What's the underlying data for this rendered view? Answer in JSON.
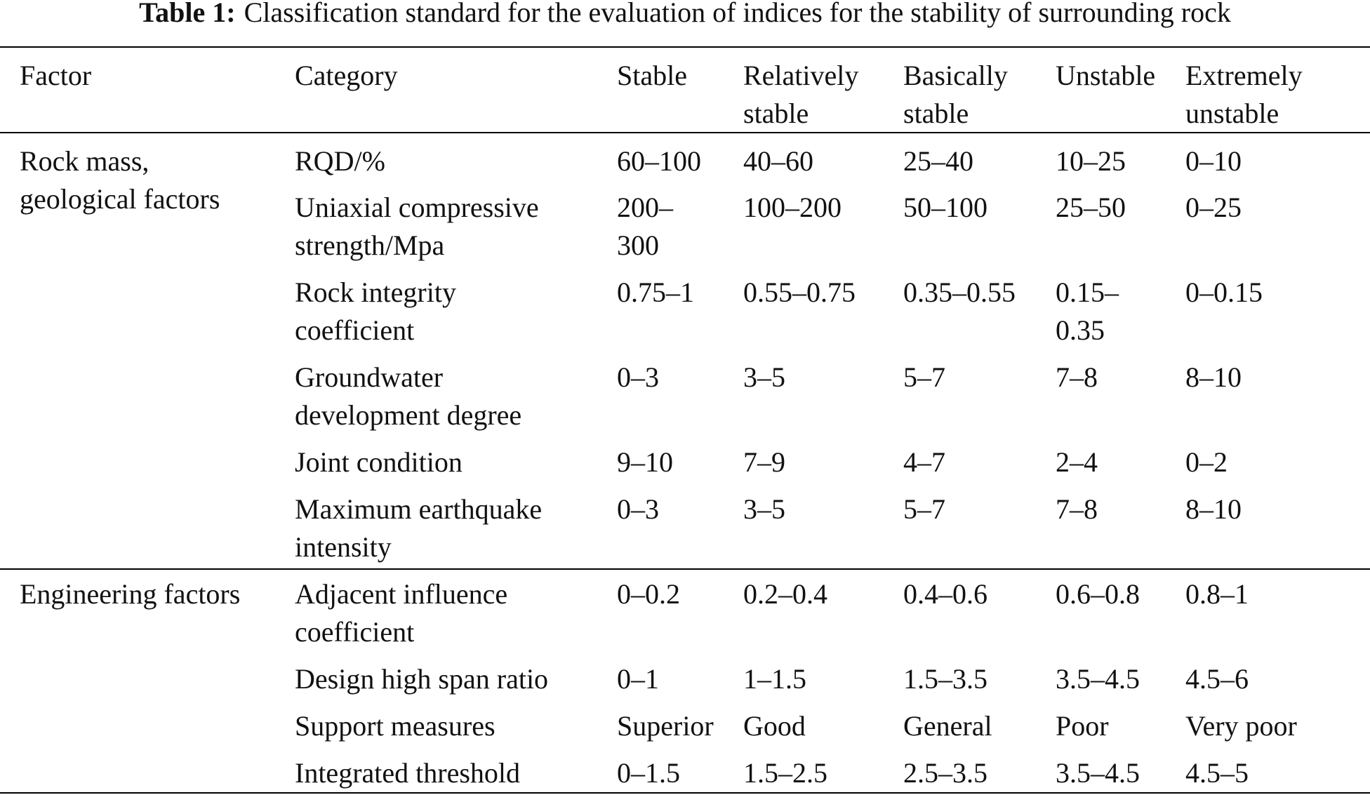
{
  "caption": {
    "label": "Table 1:",
    "text": "Classification standard for the evaluation of indices for the stability of surrounding rock"
  },
  "header": {
    "factor": "Factor",
    "category": "Category",
    "stable": "Stable",
    "relatively_stable": [
      "Relatively",
      "stable"
    ],
    "basically_stable": [
      "Basically",
      "stable"
    ],
    "unstable": "Unstable",
    "extremely_unstable": [
      "Extremely",
      "unstable"
    ]
  },
  "groups": [
    {
      "factor": [
        "Rock mass,",
        "geological factors"
      ],
      "rows": [
        {
          "category": [
            "RQD/%"
          ],
          "stable": [
            "60–100"
          ],
          "relatively_stable": [
            "40–60"
          ],
          "basically_stable": [
            "25–40"
          ],
          "unstable": [
            "10–25"
          ],
          "extremely_unstable": [
            "0–10"
          ]
        },
        {
          "category": [
            "Uniaxial compressive",
            "strength/Mpa"
          ],
          "stable": [
            "200–",
            "300"
          ],
          "relatively_stable": [
            "100–200"
          ],
          "basically_stable": [
            "50–100"
          ],
          "unstable": [
            "25–50"
          ],
          "extremely_unstable": [
            "0–25"
          ]
        },
        {
          "category": [
            "Rock integrity",
            "coefficient"
          ],
          "stable": [
            "0.75–1"
          ],
          "relatively_stable": [
            "0.55–0.75"
          ],
          "basically_stable": [
            "0.35–0.55"
          ],
          "unstable": [
            "0.15–",
            "0.35"
          ],
          "extremely_unstable": [
            "0–0.15"
          ]
        },
        {
          "category": [
            "Groundwater",
            "development degree"
          ],
          "stable": [
            "0–3"
          ],
          "relatively_stable": [
            "3–5"
          ],
          "basically_stable": [
            "5–7"
          ],
          "unstable": [
            "7–8"
          ],
          "extremely_unstable": [
            "8–10"
          ]
        },
        {
          "category": [
            "Joint condition"
          ],
          "stable": [
            "9–10"
          ],
          "relatively_stable": [
            "7–9"
          ],
          "basically_stable": [
            "4–7"
          ],
          "unstable": [
            "2–4"
          ],
          "extremely_unstable": [
            "0–2"
          ]
        },
        {
          "category": [
            "Maximum earthquake",
            "intensity"
          ],
          "stable": [
            "0–3"
          ],
          "relatively_stable": [
            "3–5"
          ],
          "basically_stable": [
            "5–7"
          ],
          "unstable": [
            "7–8"
          ],
          "extremely_unstable": [
            "8–10"
          ]
        }
      ]
    },
    {
      "factor": [
        "Engineering factors"
      ],
      "rows": [
        {
          "category": [
            "Adjacent influence",
            "coefficient"
          ],
          "stable": [
            "0–0.2"
          ],
          "relatively_stable": [
            "0.2–0.4"
          ],
          "basically_stable": [
            "0.4–0.6"
          ],
          "unstable": [
            "0.6–0.8"
          ],
          "extremely_unstable": [
            "0.8–1"
          ]
        },
        {
          "category": [
            "Design high span ratio"
          ],
          "stable": [
            "0–1"
          ],
          "relatively_stable": [
            "1–1.5"
          ],
          "basically_stable": [
            "1.5–3.5"
          ],
          "unstable": [
            "3.5–4.5"
          ],
          "extremely_unstable": [
            "4.5–6"
          ]
        },
        {
          "category": [
            "Support measures"
          ],
          "stable": [
            "Superior"
          ],
          "relatively_stable": [
            "Good"
          ],
          "basically_stable": [
            "General"
          ],
          "unstable": [
            "Poor"
          ],
          "extremely_unstable": [
            "Very poor"
          ]
        },
        {
          "category": [
            "Integrated threshold"
          ],
          "stable": [
            "0–1.5"
          ],
          "relatively_stable": [
            "1.5–2.5"
          ],
          "basically_stable": [
            "2.5–3.5"
          ],
          "unstable": [
            "3.5–4.5"
          ],
          "extremely_unstable": [
            "4.5–5"
          ]
        }
      ]
    }
  ]
}
